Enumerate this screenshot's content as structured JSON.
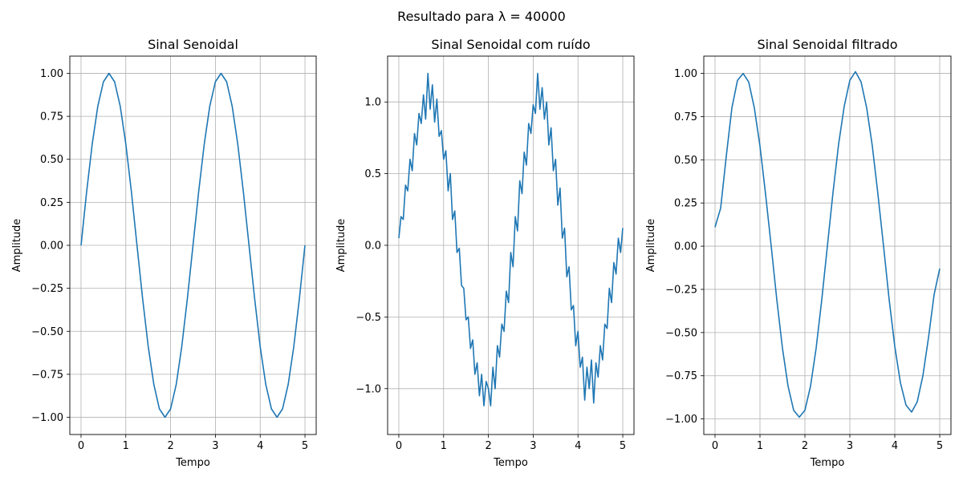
{
  "figure": {
    "suptitle": "Resultado para λ = 40000"
  },
  "colors": {
    "line": "#1f77b4",
    "grid": "#b0b0b0",
    "axes": "#000000"
  },
  "chart_data": [
    {
      "type": "line",
      "title": "Sinal Senoidal",
      "xlabel": "Tempo",
      "ylabel": "Amplitude",
      "xlim": [
        -0.25,
        5.25
      ],
      "ylim": [
        -1.1,
        1.1
      ],
      "grid": true,
      "xticks": [
        0,
        1,
        2,
        3,
        4,
        5
      ],
      "xtick_labels": [
        "0",
        "1",
        "2",
        "3",
        "4",
        "5"
      ],
      "yticks": [
        -1.0,
        -0.75,
        -0.5,
        -0.25,
        0.0,
        0.25,
        0.5,
        0.75,
        1.0
      ],
      "ytick_labels": [
        "−1.00",
        "−0.75",
        "−0.50",
        "−0.25",
        "0.00",
        "0.25",
        "0.50",
        "0.75",
        "1.00"
      ],
      "series": [
        {
          "x": [
            0,
            0.125,
            0.25,
            0.375,
            0.5,
            0.625,
            0.75,
            0.875,
            1.0,
            1.125,
            1.25,
            1.375,
            1.5,
            1.625,
            1.75,
            1.875,
            2.0,
            2.125,
            2.25,
            2.375,
            2.5,
            2.625,
            2.75,
            2.875,
            3.0,
            3.125,
            3.25,
            3.375,
            3.5,
            3.625,
            3.75,
            3.875,
            4.0,
            4.125,
            4.25,
            4.375,
            4.5,
            4.625,
            4.75,
            4.875,
            5.0
          ],
          "y": [
            0.0,
            0.309,
            0.588,
            0.809,
            0.951,
            1.0,
            0.951,
            0.809,
            0.588,
            0.309,
            0.0,
            -0.309,
            -0.588,
            -0.809,
            -0.951,
            -1.0,
            -0.951,
            -0.809,
            -0.588,
            -0.309,
            0.0,
            0.309,
            0.588,
            0.809,
            0.951,
            1.0,
            0.951,
            0.809,
            0.588,
            0.309,
            0.0,
            -0.309,
            -0.588,
            -0.809,
            -0.951,
            -1.0,
            -0.951,
            -0.809,
            -0.588,
            -0.309,
            0.0
          ]
        }
      ]
    },
    {
      "type": "line",
      "title": "Sinal Senoidal com ruído",
      "xlabel": "Tempo",
      "ylabel": "Amplitude",
      "xlim": [
        -0.25,
        5.25
      ],
      "ylim": [
        -1.32,
        1.32
      ],
      "grid": true,
      "xticks": [
        0,
        1,
        2,
        3,
        4,
        5
      ],
      "xtick_labels": [
        "0",
        "1",
        "2",
        "3",
        "4",
        "5"
      ],
      "yticks": [
        -1.0,
        -0.5,
        0.0,
        0.5,
        1.0
      ],
      "ytick_labels": [
        "−1.0",
        "−0.5",
        "0.0",
        "0.5",
        "1.0"
      ],
      "series": [
        {
          "x": [
            0,
            0.05,
            0.1,
            0.15,
            0.2,
            0.25,
            0.3,
            0.35,
            0.4,
            0.45,
            0.5,
            0.55,
            0.6,
            0.65,
            0.7,
            0.75,
            0.8,
            0.85,
            0.9,
            0.95,
            1.0,
            1.05,
            1.1,
            1.15,
            1.2,
            1.25,
            1.3,
            1.35,
            1.4,
            1.45,
            1.5,
            1.55,
            1.6,
            1.65,
            1.7,
            1.75,
            1.8,
            1.85,
            1.9,
            1.95,
            2.0,
            2.05,
            2.1,
            2.15,
            2.2,
            2.25,
            2.3,
            2.35,
            2.4,
            2.45,
            2.5,
            2.55,
            2.6,
            2.65,
            2.7,
            2.75,
            2.8,
            2.85,
            2.9,
            2.95,
            3.0,
            3.05,
            3.1,
            3.15,
            3.2,
            3.25,
            3.3,
            3.35,
            3.4,
            3.45,
            3.5,
            3.55,
            3.6,
            3.65,
            3.7,
            3.75,
            3.8,
            3.85,
            3.9,
            3.95,
            4.0,
            4.05,
            4.1,
            4.15,
            4.2,
            4.25,
            4.3,
            4.35,
            4.4,
            4.45,
            4.5,
            4.55,
            4.6,
            4.65,
            4.7,
            4.75,
            4.8,
            4.85,
            4.9,
            4.95,
            5.0
          ],
          "y": [
            0.05,
            0.2,
            0.18,
            0.42,
            0.38,
            0.6,
            0.52,
            0.78,
            0.7,
            0.92,
            0.85,
            1.05,
            0.88,
            1.2,
            0.95,
            1.12,
            0.86,
            1.02,
            0.76,
            0.8,
            0.6,
            0.66,
            0.38,
            0.5,
            0.18,
            0.24,
            -0.05,
            -0.02,
            -0.28,
            -0.3,
            -0.52,
            -0.5,
            -0.72,
            -0.66,
            -0.9,
            -0.82,
            -1.05,
            -0.9,
            -1.12,
            -0.95,
            -1.0,
            -1.12,
            -0.85,
            -1.0,
            -0.7,
            -0.78,
            -0.55,
            -0.6,
            -0.32,
            -0.4,
            -0.05,
            -0.15,
            0.2,
            0.1,
            0.45,
            0.36,
            0.65,
            0.56,
            0.85,
            0.78,
            0.98,
            0.92,
            1.2,
            0.95,
            1.1,
            0.88,
            1.0,
            0.7,
            0.82,
            0.52,
            0.6,
            0.28,
            0.4,
            0.05,
            0.12,
            -0.22,
            -0.15,
            -0.45,
            -0.42,
            -0.7,
            -0.6,
            -0.85,
            -0.78,
            -1.08,
            -0.85,
            -1.0,
            -0.8,
            -1.1,
            -0.82,
            -0.92,
            -0.7,
            -0.8,
            -0.55,
            -0.58,
            -0.3,
            -0.4,
            -0.12,
            -0.2,
            0.05,
            -0.05,
            0.12
          ]
        }
      ]
    },
    {
      "type": "line",
      "title": "Sinal Senoidal filtrado",
      "xlabel": "Tempo",
      "ylabel": "Amplitude",
      "xlim": [
        -0.25,
        5.25
      ],
      "ylim": [
        -1.09,
        1.1
      ],
      "grid": true,
      "xticks": [
        0,
        1,
        2,
        3,
        4,
        5
      ],
      "xtick_labels": [
        "0",
        "1",
        "2",
        "3",
        "4",
        "5"
      ],
      "yticks": [
        -1.0,
        -0.75,
        -0.5,
        -0.25,
        0.0,
        0.25,
        0.5,
        0.75,
        1.0
      ],
      "ytick_labels": [
        "−1.00",
        "−0.75",
        "−0.50",
        "−0.25",
        "0.00",
        "0.25",
        "0.50",
        "0.75",
        "1.00"
      ],
      "series": [
        {
          "x": [
            0,
            0.125,
            0.25,
            0.375,
            0.5,
            0.625,
            0.75,
            0.875,
            1.0,
            1.125,
            1.25,
            1.375,
            1.5,
            1.625,
            1.75,
            1.875,
            2.0,
            2.125,
            2.25,
            2.375,
            2.5,
            2.625,
            2.75,
            2.875,
            3.0,
            3.125,
            3.25,
            3.375,
            3.5,
            3.625,
            3.75,
            3.875,
            4.0,
            4.125,
            4.25,
            4.375,
            4.5,
            4.625,
            4.75,
            4.875,
            5.0
          ],
          "y": [
            0.11,
            0.22,
            0.52,
            0.8,
            0.96,
            1.0,
            0.95,
            0.8,
            0.58,
            0.3,
            0.0,
            -0.31,
            -0.59,
            -0.81,
            -0.95,
            -0.99,
            -0.95,
            -0.81,
            -0.59,
            -0.31,
            0.0,
            0.31,
            0.59,
            0.81,
            0.96,
            1.01,
            0.95,
            0.8,
            0.58,
            0.3,
            0.0,
            -0.31,
            -0.58,
            -0.79,
            -0.92,
            -0.96,
            -0.9,
            -0.75,
            -0.53,
            -0.28,
            -0.13
          ]
        }
      ]
    }
  ]
}
